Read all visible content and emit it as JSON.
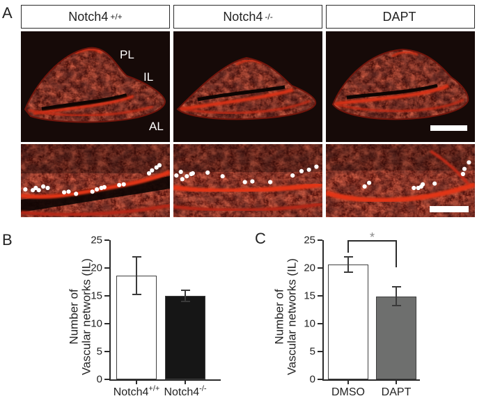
{
  "panels": {
    "a": {
      "label": "A",
      "columns": [
        {
          "title_base": "Notch4",
          "title_sup": "+/+"
        },
        {
          "title_base": "Notch4",
          "title_sup": "-/-"
        },
        {
          "title_base": "DAPT",
          "title_sup": ""
        }
      ],
      "region_labels": [
        "PL",
        "IL",
        "AL"
      ],
      "stain_colors": {
        "background": "#160a08",
        "tissue_red": "#b82413",
        "bright_red": "#e23418"
      },
      "marker_color": "#ffffff",
      "dots": {
        "col1": [
          [
            3,
            62
          ],
          [
            8,
            63
          ],
          [
            10,
            60
          ],
          [
            12,
            63
          ],
          [
            15,
            58
          ],
          [
            18,
            60
          ],
          [
            29,
            66
          ],
          [
            32,
            65
          ],
          [
            37,
            68
          ],
          [
            48,
            65
          ],
          [
            51,
            62
          ],
          [
            54,
            60
          ],
          [
            56,
            59
          ],
          [
            66,
            56
          ],
          [
            69,
            55
          ],
          [
            86,
            40
          ],
          [
            88,
            36
          ],
          [
            91,
            32
          ],
          [
            93,
            29
          ]
        ],
        "col2": [
          [
            2,
            43
          ],
          [
            5,
            38
          ],
          [
            6,
            48
          ],
          [
            9,
            44
          ],
          [
            12,
            41
          ],
          [
            13,
            40
          ],
          [
            23,
            39
          ],
          [
            33,
            44
          ],
          [
            48,
            52
          ],
          [
            53,
            51
          ],
          [
            65,
            52
          ],
          [
            80,
            43
          ],
          [
            86,
            37
          ],
          [
            91,
            35
          ],
          [
            96,
            31
          ]
        ],
        "col3": [
          [
            26,
            58
          ],
          [
            29,
            53
          ],
          [
            59,
            60
          ],
          [
            62,
            60
          ],
          [
            64,
            58
          ],
          [
            65,
            55
          ],
          [
            73,
            54
          ],
          [
            92,
            41
          ],
          [
            93,
            34
          ],
          [
            96,
            25
          ]
        ]
      }
    },
    "b": {
      "label": "B"
    },
    "c": {
      "label": "C"
    }
  },
  "chart_data": [
    {
      "id": "chart-b",
      "type": "bar",
      "categories": [
        "Notch4+/+",
        "Notch4-/-"
      ],
      "categories_rich": [
        {
          "base": "Notch4",
          "sup": "+/+"
        },
        {
          "base": "Notch4",
          "sup": "-/-"
        }
      ],
      "values": [
        18.6,
        15.0
      ],
      "errors": [
        3.4,
        1.0
      ],
      "bar_colors": [
        "#ffffff",
        "#161616"
      ],
      "ylabel_line1": "Number of",
      "ylabel_line2": "Vascular networks (IL)",
      "ylim": [
        0,
        25
      ],
      "yticks": [
        0,
        5,
        10,
        15,
        20,
        25
      ],
      "grid": false,
      "significance": null
    },
    {
      "id": "chart-c",
      "type": "bar",
      "categories": [
        "DMSO",
        "DAPT"
      ],
      "categories_rich": [
        {
          "base": "DMSO",
          "sup": ""
        },
        {
          "base": "DAPT",
          "sup": ""
        }
      ],
      "values": [
        20.6,
        14.9
      ],
      "errors": [
        1.4,
        1.7
      ],
      "bar_colors": [
        "#ffffff",
        "#6e6f6e"
      ],
      "ylabel_line1": "Number of",
      "ylabel_line2": "Vascular networks (IL)",
      "ylim": [
        0,
        25
      ],
      "yticks": [
        0,
        5,
        10,
        15,
        20,
        25
      ],
      "grid": false,
      "significance": {
        "label": "*"
      }
    }
  ]
}
